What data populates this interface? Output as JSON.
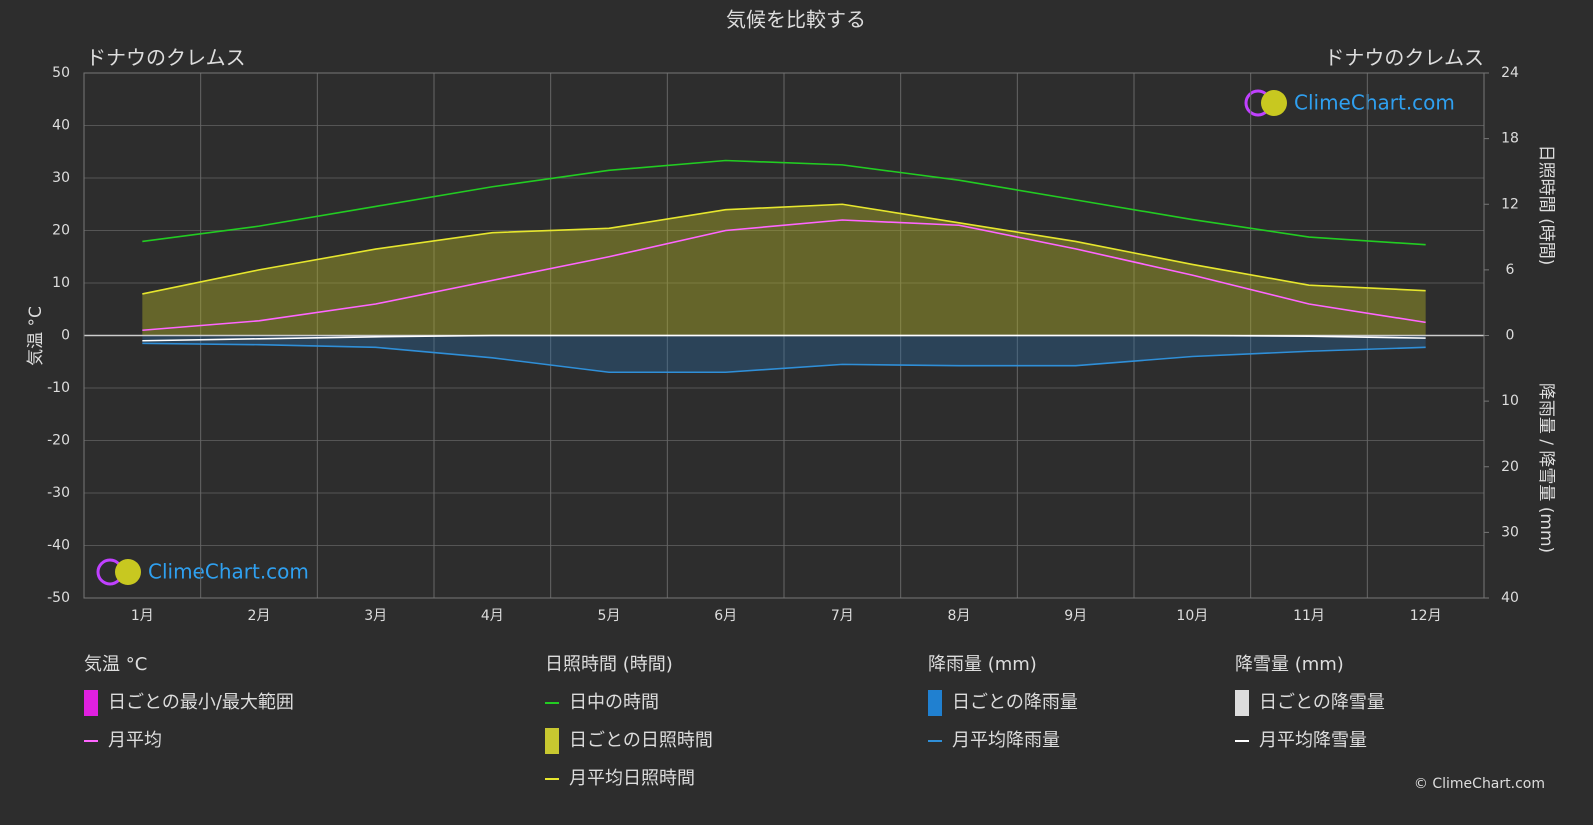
{
  "chart_data": {
    "type": "line",
    "title": "気候を比較する",
    "subtitle_left": "ドナウのクレムス",
    "subtitle_right": "ドナウのクレムス",
    "y_label": "気温 °C",
    "y2_label": "日照時間 (時間)",
    "y3_label": "降雨量 / 降雪量 (mm)",
    "categories": [
      "1月",
      "2月",
      "3月",
      "4月",
      "5月",
      "6月",
      "7月",
      "8月",
      "9月",
      "10月",
      "11月",
      "12月"
    ],
    "ylim": [
      -50,
      50
    ],
    "yticks": [
      -50,
      -40,
      -30,
      -20,
      -10,
      0,
      10,
      20,
      30,
      40,
      50
    ],
    "y2lim": [
      0,
      24
    ],
    "y2ticks": [
      0,
      6,
      12,
      18,
      24
    ],
    "y3lim": [
      0,
      40
    ],
    "y3ticks": [
      10,
      20,
      30,
      40
    ],
    "grid": true,
    "series": [
      {
        "name": "月平均",
        "color": "#ff66ff",
        "axis": "y",
        "values": [
          1,
          2.8,
          6,
          10.5,
          15,
          20,
          22,
          21,
          16.5,
          11.5,
          6,
          2.5
        ]
      },
      {
        "name": "日中の時間",
        "color": "#22cc22",
        "axis": "y2",
        "values": [
          8.6,
          10.0,
          11.8,
          13.6,
          15.1,
          16.0,
          15.6,
          14.2,
          12.4,
          10.6,
          9.0,
          8.3
        ]
      },
      {
        "name": "月平均日照時間",
        "color": "#e6e62e",
        "axis": "y2",
        "values": [
          3.8,
          6.0,
          7.9,
          9.4,
          9.8,
          11.5,
          12.0,
          10.3,
          8.6,
          6.5,
          4.6,
          4.1
        ]
      },
      {
        "name": "月平均降雨量",
        "color": "#2f8fd8",
        "axis": "y3",
        "values": [
          1.2,
          1.4,
          1.8,
          3.4,
          5.6,
          5.6,
          4.4,
          4.6,
          4.6,
          3.2,
          2.4,
          1.8
        ]
      },
      {
        "name": "月平均降雪量",
        "color": "#ffffff",
        "axis": "y3",
        "values": [
          0.8,
          0.5,
          0.2,
          0,
          0,
          0,
          0,
          0,
          0,
          0,
          0.1,
          0.4
        ]
      }
    ],
    "legend_titles": [
      "気温 °C",
      "日照時間 (時間)",
      "降雨量 (mm)",
      "降雪量 (mm)"
    ],
    "daily_labels": [
      "日ごとの最小/最大範囲",
      "日ごとの日照時間",
      "日ごとの降雨量",
      "日ごとの降雪量"
    ],
    "logo": "ClimeChart.com",
    "copyright": "© ClimeChart.com"
  }
}
